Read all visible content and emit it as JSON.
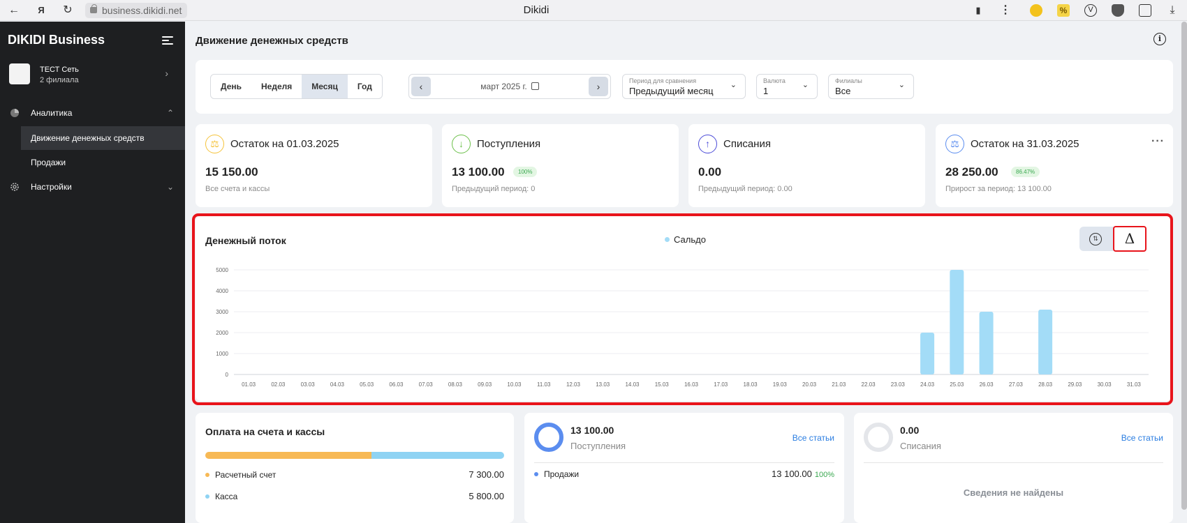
{
  "browser": {
    "url": "business.dikidi.net",
    "tab_title": "Dikidi"
  },
  "sidebar": {
    "brand": "DIKIDI Business",
    "org": {
      "name": "ТЕСТ Сеть",
      "subtitle": "2 филиала"
    },
    "items": [
      {
        "label": "Аналитика"
      },
      {
        "label": "Движение денежных средств"
      },
      {
        "label": "Продажи"
      },
      {
        "label": "Настройки"
      }
    ]
  },
  "page": {
    "title": "Движение денежных средств"
  },
  "filters": {
    "periods": [
      "День",
      "Неделя",
      "Месяц",
      "Год"
    ],
    "active_period": "Месяц",
    "date_value": "март 2025 г.",
    "compare": {
      "label": "Период для сравнения",
      "value": "Предыдущий месяц"
    },
    "currency": {
      "label": "Валюта",
      "value": "1"
    },
    "branches": {
      "label": "Филиалы",
      "value": "Все"
    }
  },
  "kpis": [
    {
      "title": "Остаток на 01.03.2025",
      "value": "15 150.00",
      "badge": "",
      "note": "Все счета и кассы",
      "color": "#f5c33b"
    },
    {
      "title": "Поступления",
      "value": "13 100.00",
      "badge": "100%",
      "note": "Предыдущий период: 0",
      "color": "#6cc04a"
    },
    {
      "title": "Списания",
      "value": "0.00",
      "badge": "",
      "note": "Предыдущий период: 0.00",
      "color": "#4c4cd8"
    },
    {
      "title": "Остаток на 31.03.2025",
      "value": "28 250.00",
      "badge": "86.47%",
      "note": "Прирост за период: 13 100.00",
      "color": "#5b8def"
    }
  ],
  "chart": {
    "toggle_icon": "Δ"
  },
  "chart_data": {
    "type": "bar",
    "title": "Денежный поток",
    "series": [
      {
        "name": "Сальдо",
        "color": "#a3dcf7",
        "values": [
          0,
          0,
          0,
          0,
          0,
          0,
          0,
          0,
          0,
          0,
          0,
          0,
          0,
          0,
          0,
          0,
          0,
          0,
          0,
          0,
          0,
          0,
          0,
          2000,
          5000,
          3000,
          0,
          3100,
          0,
          0,
          0
        ]
      }
    ],
    "categories": [
      "01.03",
      "02.03",
      "03.03",
      "04.03",
      "05.03",
      "06.03",
      "07.03",
      "08.03",
      "09.03",
      "10.03",
      "11.03",
      "12.03",
      "13.03",
      "14.03",
      "15.03",
      "16.03",
      "17.03",
      "18.03",
      "19.03",
      "20.03",
      "21.03",
      "22.03",
      "23.03",
      "24.03",
      "25.03",
      "26.03",
      "27.03",
      "28.03",
      "29.03",
      "30.03",
      "31.03"
    ],
    "yticks": [
      0,
      1000,
      2000,
      3000,
      4000,
      5000
    ],
    "ylim": [
      0,
      5000
    ],
    "grid": true,
    "legend_position": "top-center"
  },
  "payments": {
    "title": "Оплата на счета и кассы",
    "items": [
      {
        "label": "Расчетный счет",
        "amount": "7 300.00",
        "share": 0.557,
        "color": "#f7b955"
      },
      {
        "label": "Касса",
        "amount": "5 800.00",
        "share": 0.443,
        "color": "#8fd3f3"
      }
    ]
  },
  "income": {
    "value": "13 100.00",
    "label": "Поступления",
    "link": "Все статьи",
    "row": {
      "label": "Продажи",
      "amount": "13 100.00",
      "pct": "100%"
    },
    "ring_color": "#5b8def"
  },
  "expense": {
    "value": "0.00",
    "label": "Списания",
    "link": "Все статьи",
    "empty": "Сведения не найдены",
    "ring_color": "#e4e6ea"
  }
}
